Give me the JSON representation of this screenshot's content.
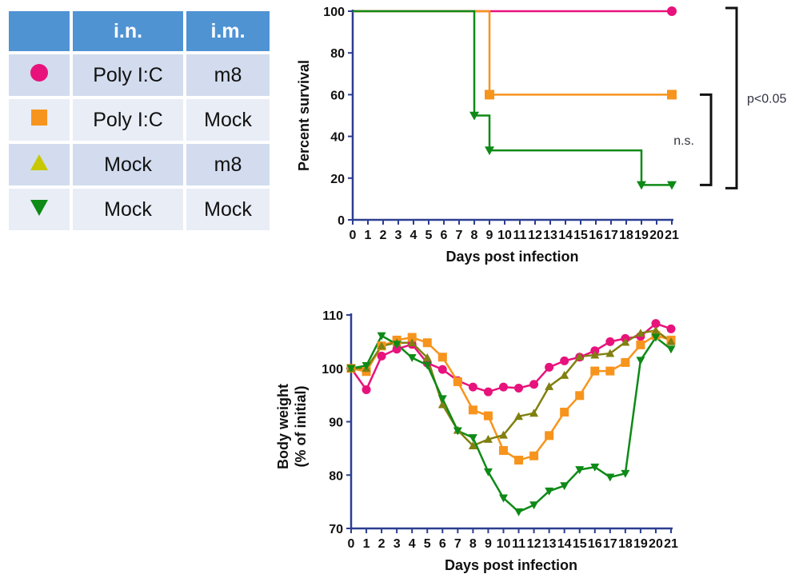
{
  "legend_table": {
    "headers": [
      "",
      "i.n.",
      "i.m."
    ],
    "rows": [
      {
        "marker": "circle",
        "color": "#e8127c",
        "in": "Poly I:C",
        "im": "m8"
      },
      {
        "marker": "square",
        "color": "#f7941d",
        "in": "Poly I:C",
        "im": "Mock"
      },
      {
        "marker": "triangle-up",
        "color": "#c8c800",
        "in": "Mock",
        "im": "m8"
      },
      {
        "marker": "triangle-down",
        "color": "#0e8a16",
        "in": "Mock",
        "im": "Mock"
      }
    ]
  },
  "chart_data": [
    {
      "type": "line",
      "subtype": "survival-step",
      "xlabel": "Days post infection",
      "ylabel": "Percent survival",
      "xlim": [
        0,
        21
      ],
      "ylim": [
        0,
        100
      ],
      "x_ticks": [
        0,
        1,
        2,
        3,
        4,
        5,
        6,
        7,
        8,
        9,
        10,
        11,
        12,
        13,
        14,
        15,
        16,
        17,
        18,
        19,
        20,
        21
      ],
      "y_ticks": [
        0,
        20,
        40,
        60,
        80,
        100
      ],
      "series": [
        {
          "marker": "circle",
          "color": "#e8127c",
          "steps": [
            [
              0,
              100
            ],
            [
              21,
              100
            ]
          ],
          "markers": [
            [
              21,
              100
            ]
          ]
        },
        {
          "marker": "square",
          "color": "#f7941d",
          "steps": [
            [
              0,
              100
            ],
            [
              9,
              100
            ],
            [
              9,
              60
            ],
            [
              21,
              60
            ]
          ],
          "markers": [
            [
              9,
              60
            ],
            [
              21,
              60
            ]
          ]
        },
        {
          "marker": "triangle-down",
          "color": "#0e8a16",
          "steps": [
            [
              0,
              100
            ],
            [
              8,
              100
            ],
            [
              8,
              50
            ],
            [
              9,
              50
            ],
            [
              9,
              33.3
            ],
            [
              19,
              33.3
            ],
            [
              19,
              16.7
            ],
            [
              21,
              16.7
            ]
          ],
          "markers": [
            [
              8,
              50
            ],
            [
              9,
              33.3
            ],
            [
              19,
              16.7
            ],
            [
              21,
              16.7
            ]
          ]
        }
      ],
      "annotations": [
        {
          "text": "p<0.05",
          "from": 100,
          "to": 16.7,
          "tier": "outer"
        },
        {
          "text": "n.s.",
          "from": 60,
          "to": 16.7,
          "tier": "inner"
        }
      ]
    },
    {
      "type": "line",
      "xlabel": "Days post infection",
      "ylabel": [
        "Body weight",
        "(% of initial)"
      ],
      "xlim": [
        0,
        21
      ],
      "ylim": [
        70,
        110
      ],
      "x_ticks": [
        0,
        1,
        2,
        3,
        4,
        5,
        6,
        7,
        8,
        9,
        10,
        11,
        12,
        13,
        14,
        15,
        16,
        17,
        18,
        19,
        20,
        21
      ],
      "y_ticks": [
        70,
        80,
        90,
        100,
        110
      ],
      "x": [
        0,
        1,
        2,
        3,
        4,
        5,
        6,
        7,
        8,
        9,
        10,
        11,
        12,
        13,
        14,
        15,
        16,
        17,
        18,
        19,
        20,
        21
      ],
      "series": [
        {
          "marker": "circle",
          "color": "#e8127c",
          "values": [
            100,
            96,
            102.3,
            103.6,
            104.5,
            101,
            99.8,
            97.7,
            96.5,
            95.6,
            96.5,
            96.3,
            97,
            100.2,
            101.4,
            102.1,
            103.3,
            105,
            105.6,
            106,
            108.4,
            107.4
          ]
        },
        {
          "marker": "square",
          "color": "#f7941d",
          "values": [
            100,
            99.4,
            104.2,
            105.3,
            105.8,
            104.8,
            102.1,
            97.5,
            92.2,
            91.1,
            84.6,
            82.8,
            83.6,
            87.4,
            91.8,
            94.9,
            99.5,
            99.5,
            101.1,
            104.4,
            106.2,
            105.3
          ]
        },
        {
          "marker": "triangle-up",
          "color": "#808010",
          "values": [
            100,
            100,
            104.2,
            104.8,
            104.8,
            102,
            93.2,
            88.4,
            85.5,
            86.7,
            87.5,
            91,
            91.6,
            96.6,
            98.7,
            102.2,
            102.5,
            102.8,
            104.9,
            106.6,
            107.1,
            105
          ]
        },
        {
          "marker": "triangle-down",
          "color": "#0e8a16",
          "values": [
            100,
            100.5,
            106.1,
            104.5,
            102,
            100.6,
            94.3,
            88.3,
            87,
            80.6,
            75.7,
            73.1,
            74.4,
            77,
            78,
            81,
            81.5,
            79.6,
            80.3,
            101.5,
            105.8,
            103.6
          ]
        }
      ]
    }
  ]
}
